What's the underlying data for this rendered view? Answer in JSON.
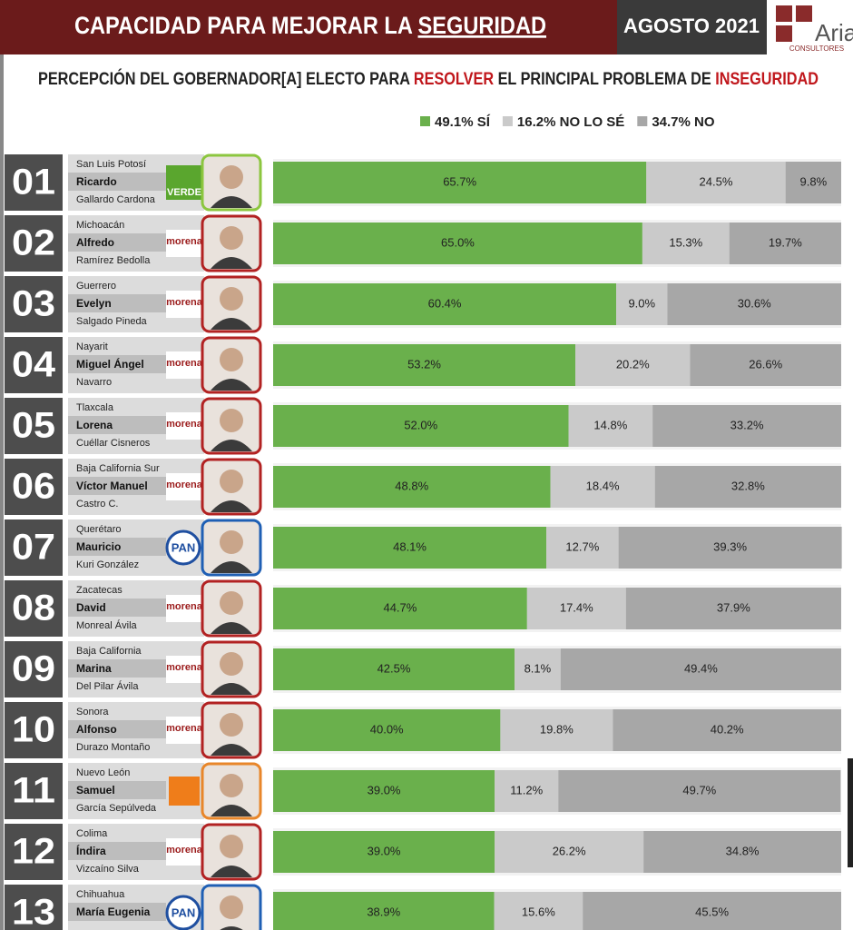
{
  "header": {
    "title": "CAPACIDAD PARA MEJORAR LA ",
    "title_emphasis": "SEGURIDAD",
    "date": "AGOSTO 2021",
    "logo": "Arias",
    "logo_sub": "CONSULTORES"
  },
  "chart_data": {
    "type": "bar",
    "orientation": "horizontal",
    "stacked": true,
    "subtitle": [
      "PERCEPCIÓN DEL GOBERNADOR[A] ELECTO PARA ",
      "RESOLVER",
      " EL PRINCIPAL PROBLEMA DE ",
      "INSEGURIDAD"
    ],
    "xlim": [
      0,
      100
    ],
    "categories": [
      "01",
      "02",
      "03",
      "04",
      "05",
      "06",
      "07",
      "08",
      "09",
      "10",
      "11",
      "12",
      "13"
    ],
    "states": [
      "San Luis Potosí",
      "Michoacán",
      "Guerrero",
      "Nayarit",
      "Tlaxcala",
      "Baja California Sur",
      "Querétaro",
      "Zacatecas",
      "Baja California",
      "Sonora",
      "Nuevo León",
      "Colima",
      "Chihuahua"
    ],
    "names": [
      "Ricardo",
      "Alfredo",
      "Evelyn",
      "Miguel Ángel",
      "Lorena",
      "Víctor Manuel",
      "Mauricio",
      "David",
      "Marina",
      "Alfonso",
      "Samuel",
      "Índira",
      "María Eugenia"
    ],
    "surnames": [
      "Gallardo Cardona",
      "Ramírez Bedolla",
      "Salgado Pineda",
      "Navarro",
      "Cuéllar Cisneros",
      "Castro C.",
      "Kuri González",
      "Monreal Ávila",
      "Del Pilar Ávila",
      "Durazo Montaño",
      "García Sepúlveda",
      "Vizcaíno Silva",
      null
    ],
    "parties": [
      "VERDE",
      "morena",
      "morena",
      "morena",
      "morena",
      "morena",
      "PAN",
      "morena",
      "morena",
      "morena",
      null,
      "morena",
      "PAN"
    ],
    "frame_colors": [
      "#8cc63f",
      "#b22222",
      "#b22222",
      "#b22222",
      "#b22222",
      "#b22222",
      "#1f5fb4",
      "#b22222",
      "#b22222",
      "#b22222",
      "#e8862a",
      "#b22222",
      "#1f5fb4"
    ],
    "series": [
      {
        "name": "SÍ",
        "color": "#6ab04c",
        "total": 49.1,
        "total_label": "49.1%",
        "values": [
          65.7,
          65.0,
          60.4,
          53.2,
          52.0,
          48.8,
          48.1,
          44.7,
          42.5,
          40.0,
          39.0,
          39.0,
          38.9
        ],
        "value_labels": [
          "65.7%",
          "65.0%",
          "60.4%",
          "53.2%",
          "52.0%",
          "48.8%",
          "48.1%",
          "44.7%",
          "42.5%",
          "40.0%",
          "39.0%",
          "39.0%",
          "38.9%"
        ]
      },
      {
        "name": "NO LO SÉ",
        "color": "#cacaca",
        "total": 16.2,
        "total_label": "16.2%",
        "values": [
          24.5,
          15.3,
          9.0,
          20.2,
          14.8,
          18.4,
          12.7,
          17.4,
          8.1,
          19.8,
          11.2,
          26.2,
          15.6
        ],
        "value_labels": [
          "24.5%",
          "15.3%",
          "9.0%",
          "20.2%",
          "14.8%",
          "18.4%",
          "12.7%",
          "17.4%",
          "8.1%",
          "19.8%",
          "11.2%",
          "26.2%",
          "15.6%"
        ]
      },
      {
        "name": "NO",
        "color": "#a7a7a7",
        "total": 34.7,
        "total_label": "34.7%",
        "values": [
          9.8,
          19.7,
          30.6,
          26.6,
          33.2,
          32.8,
          39.3,
          37.9,
          49.4,
          40.2,
          49.7,
          34.8,
          45.5
        ],
        "value_labels": [
          "9.8%",
          "19.7%",
          "30.6%",
          "26.6%",
          "33.2%",
          "32.8%",
          "39.3%",
          "37.9%",
          "49.4%",
          "40.2%",
          "49.7%",
          "34.8%",
          "45.5%"
        ]
      }
    ]
  }
}
